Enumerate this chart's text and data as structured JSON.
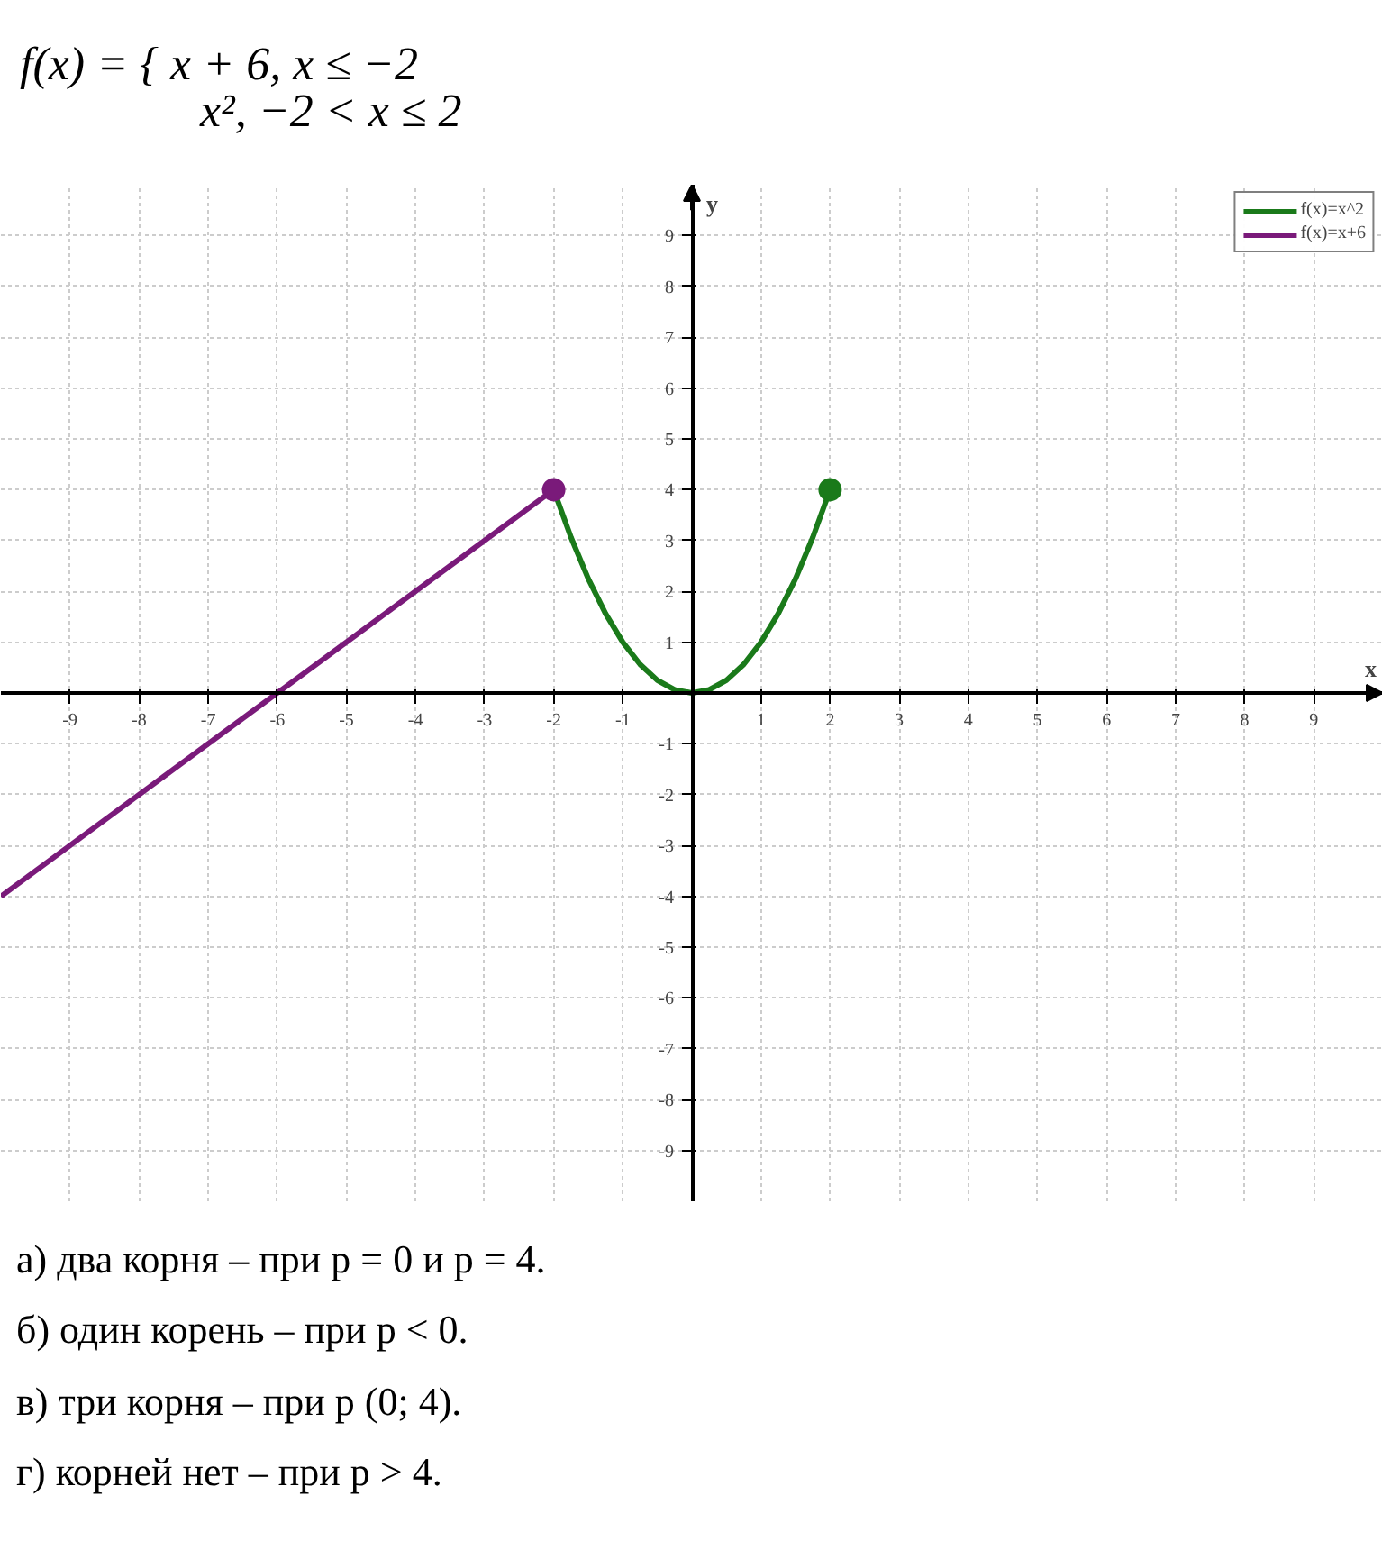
{
  "chart_data": {
    "type": "line",
    "title": "f(x) = { x + 6,      x ≤ −2",
    "subtitle": "x²,      −2 < x ≤ 2",
    "xlabel": "x",
    "ylabel": "y",
    "xlim": [
      -10,
      10
    ],
    "ylim": [
      -10,
      10
    ],
    "xticks": [
      -9,
      -8,
      -7,
      -6,
      -5,
      -4,
      -3,
      -2,
      -1,
      1,
      2,
      3,
      4,
      5,
      6,
      7,
      8,
      9
    ],
    "yticks": [
      -9,
      -8,
      -7,
      -6,
      -5,
      -4,
      -3,
      -2,
      -1,
      1,
      2,
      3,
      4,
      5,
      6,
      7,
      8,
      9
    ],
    "grid": true,
    "legend": "top right",
    "series": [
      {
        "name": "f(x)=x^2",
        "color": "#1a7a1a",
        "x": [
          -2,
          -1.75,
          -1.5,
          -1.25,
          -1,
          -0.75,
          -0.5,
          -0.25,
          0,
          0.25,
          0.5,
          0.75,
          1,
          1.25,
          1.5,
          1.75,
          2
        ],
        "values": [
          4,
          3.0625,
          2.25,
          1.5625,
          1,
          0.5625,
          0.25,
          0.0625,
          0,
          0.0625,
          0.25,
          0.5625,
          1,
          1.5625,
          2.25,
          3.0625,
          4
        ]
      },
      {
        "name": "f(x)=x+6",
        "color": "#7a1a7a",
        "x": [
          -10,
          -2
        ],
        "values": [
          -4,
          4
        ]
      },
      {
        "type": "scatter",
        "color": "#7a1a7a",
        "x": [
          -2
        ],
        "values": [
          4
        ]
      },
      {
        "type": "scatter",
        "color": "#1a7a1a",
        "x": [
          2
        ],
        "values": [
          4
        ]
      }
    ],
    "annotations": [
      "а) два корня – при p = 0 и p = 4.",
      "б) один корень – при p < 0.",
      "в) три корня – при p (0; 4).",
      "г) корней нет – при p > 4."
    ]
  }
}
